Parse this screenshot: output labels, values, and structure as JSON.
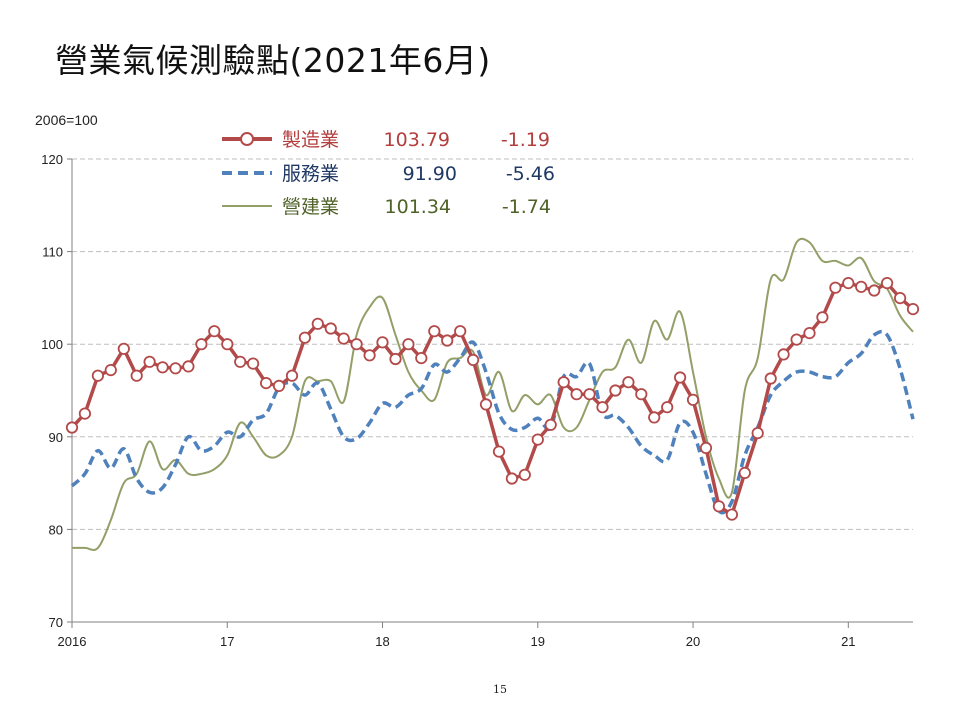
{
  "page": {
    "title": "營業氣候測驗點(2021年6月)",
    "page_number": "15"
  },
  "colors": {
    "manufacturing": "#B34A4A",
    "services": "#4F81BD",
    "construction": "#939F68",
    "legend_manufacturing_text": "#B33E3E",
    "legend_services_text": "#1F3864",
    "legend_construction_text": "#4F6228",
    "grid": "#BFBFBF",
    "axis": "#808080"
  },
  "chart_data": {
    "type": "line",
    "unit_label": "2006=100",
    "ylim": [
      70,
      120
    ],
    "yticks": [
      70,
      80,
      90,
      100,
      110,
      120
    ],
    "xlim": [
      0,
      65
    ],
    "xticks": [
      {
        "pos": 0,
        "label": "2016"
      },
      {
        "pos": 12,
        "label": "17"
      },
      {
        "pos": 24,
        "label": "18"
      },
      {
        "pos": 36,
        "label": "19"
      },
      {
        "pos": 48,
        "label": "20"
      },
      {
        "pos": 60,
        "label": "21"
      }
    ],
    "grid": "horizontal dashed",
    "legend_position": "top",
    "legend": [
      {
        "name": "製造業",
        "latest": "103.79",
        "change": "-1.19",
        "style": "solid-circle"
      },
      {
        "name": "服務業",
        "latest": "91.90",
        "change": "-5.46",
        "style": "dashed"
      },
      {
        "name": "營建業",
        "latest": "101.34",
        "change": "-1.74",
        "style": "thin"
      }
    ],
    "series": [
      {
        "name": "製造業",
        "values": [
          91.0,
          92.5,
          96.6,
          97.2,
          99.5,
          96.6,
          98.1,
          97.5,
          97.4,
          97.6,
          100.0,
          101.4,
          100.0,
          98.1,
          97.9,
          95.8,
          95.5,
          96.6,
          100.7,
          102.2,
          101.7,
          100.6,
          100.0,
          98.8,
          100.2,
          98.4,
          100.0,
          98.5,
          101.4,
          100.4,
          101.4,
          98.3,
          93.5,
          88.4,
          85.5,
          85.9,
          89.7,
          91.3,
          95.9,
          94.6,
          94.6,
          93.2,
          95.0,
          95.9,
          94.6,
          92.1,
          93.2,
          96.4,
          94.0,
          88.8,
          82.5,
          81.6,
          86.1,
          90.4,
          96.3,
          98.9,
          100.5,
          101.2,
          102.9,
          106.1,
          106.6,
          106.2,
          105.8,
          106.6,
          104.98,
          103.79
        ]
      },
      {
        "name": "服務業",
        "values": [
          84.7,
          86.0,
          88.5,
          86.6,
          88.7,
          85.5,
          84.0,
          84.5,
          87.0,
          90.0,
          88.5,
          89.0,
          90.5,
          90.0,
          91.8,
          92.5,
          95.3,
          95.8,
          94.5,
          95.8,
          93.0,
          90.0,
          89.8,
          91.5,
          93.6,
          93.2,
          94.5,
          95.2,
          97.8,
          97.0,
          98.5,
          100.2,
          97.0,
          92.5,
          90.8,
          91.0,
          92.0,
          91.0,
          96.5,
          96.5,
          97.9,
          92.5,
          92.3,
          91.0,
          89.0,
          88.0,
          87.5,
          91.5,
          90.5,
          86.0,
          82.0,
          83.0,
          88.0,
          91.0,
          94.5,
          96.0,
          97.0,
          97.0,
          96.5,
          96.5,
          98.0,
          99.0,
          101.0,
          101.0,
          97.36,
          91.9
        ]
      },
      {
        "name": "營建業",
        "values": [
          78.0,
          78.0,
          78.0,
          81.0,
          85.0,
          86.0,
          89.5,
          86.5,
          87.5,
          86.0,
          86.0,
          86.5,
          88.0,
          91.5,
          90.0,
          88.0,
          88.0,
          90.0,
          96.0,
          96.0,
          96.0,
          93.8,
          101.0,
          104.0,
          105.0,
          101.0,
          97.0,
          95.0,
          94.0,
          98.0,
          98.5,
          99.2,
          94.5,
          97.0,
          92.8,
          94.5,
          93.5,
          94.5,
          91.0,
          91.0,
          94.0,
          97.0,
          97.5,
          100.5,
          98.0,
          102.5,
          100.5,
          103.5,
          97.0,
          90.0,
          85.5,
          84.0,
          95.0,
          98.5,
          107.0,
          107.0,
          111.0,
          111.0,
          109.0,
          109.0,
          108.5,
          109.3,
          106.8,
          106.0,
          103.08,
          101.34
        ]
      }
    ]
  }
}
